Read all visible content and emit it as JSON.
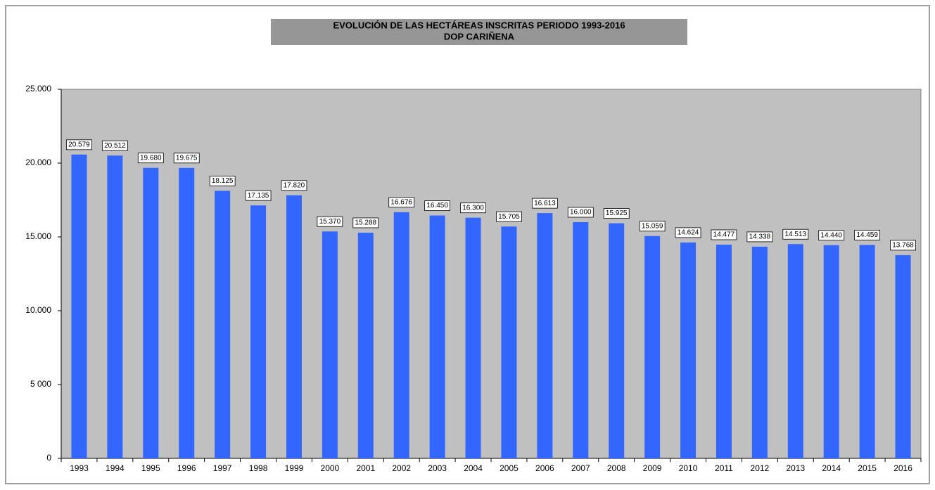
{
  "chart_data": {
    "type": "bar",
    "title": [
      "EVOLUCIÓN DE LAS HECTÁREAS INSCRITAS PERIODO 1993-2016",
      "DOP CARIÑENA"
    ],
    "categories": [
      "1993",
      "1994",
      "1995",
      "1996",
      "1997",
      "1998",
      "1999",
      "2000",
      "2001",
      "2002",
      "2003",
      "2004",
      "2005",
      "2006",
      "2007",
      "2008",
      "2009",
      "2010",
      "2011",
      "2012",
      "2013",
      "2014",
      "2015",
      "2016"
    ],
    "values": [
      20579,
      20512,
      19680,
      19675,
      18125,
      17135,
      17820,
      15370,
      15288,
      16676,
      16450,
      16300,
      15705,
      16613,
      16000,
      15925,
      15059,
      14624,
      14477,
      14338,
      14513,
      14440,
      14459,
      13768
    ],
    "value_labels": [
      "20.579",
      "20.512",
      "19.680",
      "19.675",
      "18.125",
      "17.135",
      "17.820",
      "15.370",
      "15.288",
      "16.676",
      "16.450",
      "16.300",
      "15.705",
      "16.613",
      "16.000",
      "15.925",
      "15.059",
      "14.624",
      "14.477",
      "14.338",
      "14.513",
      "14.440",
      "14.459",
      "13.768"
    ],
    "color": "#3366ff",
    "ylim": [
      0,
      25000
    ],
    "yticks": [
      0,
      {
        "value": 5000,
        "label": "5 000"
      },
      {
        "value": 10000,
        "label": "10.000"
      },
      {
        "value": 15000,
        "label": "15.000"
      },
      {
        "value": 20000,
        "label": "20.000"
      },
      {
        "value": 25000,
        "label": "25.000"
      }
    ]
  }
}
